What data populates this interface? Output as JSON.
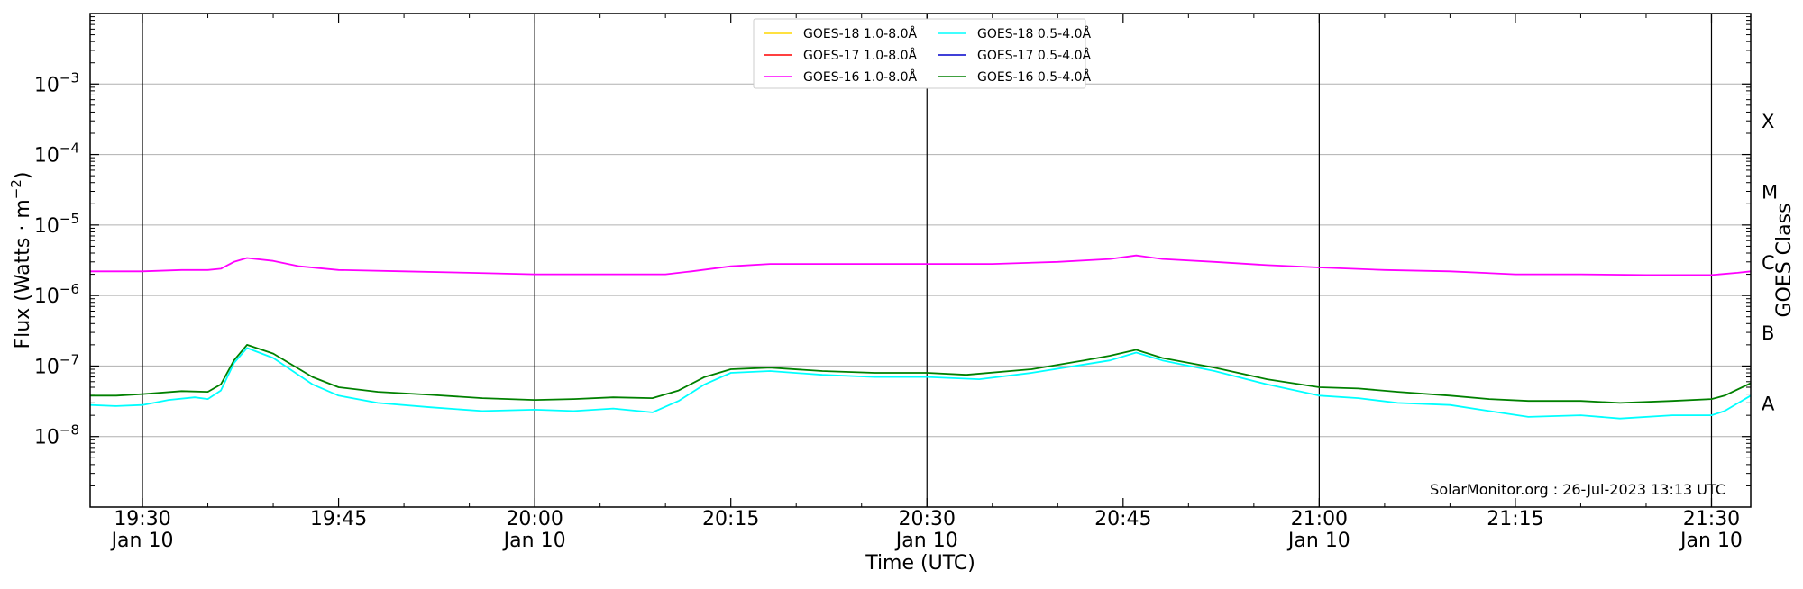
{
  "chart_data": {
    "type": "line",
    "title": "",
    "xlabel": "Time (UTC)",
    "ylabel": "Flux (Watts · m^-2)",
    "right_axis_label": "GOES Class",
    "y_scale": "log",
    "ylim": [
      1e-09,
      0.01
    ],
    "xlim": [
      "19:26",
      "21:33"
    ],
    "grid": "horizontal at decades",
    "legend_placement": "top-center",
    "y_ticks": [
      {
        "value": 1e-08,
        "base": "10",
        "exp": "−8"
      },
      {
        "value": 1e-07,
        "base": "10",
        "exp": "−7"
      },
      {
        "value": 1e-06,
        "base": "10",
        "exp": "−6"
      },
      {
        "value": 1e-05,
        "base": "10",
        "exp": "−5"
      },
      {
        "value": 0.0001,
        "base": "10",
        "exp": "−4"
      },
      {
        "value": 0.001,
        "base": "10",
        "exp": "−3"
      }
    ],
    "x_ticks": [
      {
        "time": "19:30",
        "label": "19:30",
        "date": "Jan 10",
        "vline": true
      },
      {
        "time": "19:45",
        "label": "19:45",
        "date": "",
        "vline": false
      },
      {
        "time": "20:00",
        "label": "20:00",
        "date": "Jan 10",
        "vline": true
      },
      {
        "time": "20:15",
        "label": "20:15",
        "date": "",
        "vline": false
      },
      {
        "time": "20:30",
        "label": "20:30",
        "date": "Jan 10",
        "vline": true
      },
      {
        "time": "20:45",
        "label": "20:45",
        "date": "",
        "vline": false
      },
      {
        "time": "21:00",
        "label": "21:00",
        "date": "Jan 10",
        "vline": true
      },
      {
        "time": "21:15",
        "label": "21:15",
        "date": "",
        "vline": false
      },
      {
        "time": "21:30",
        "label": "21:30",
        "date": "Jan 10",
        "vline": true
      }
    ],
    "goes_classes": [
      {
        "label": "A",
        "value": 3e-08
      },
      {
        "label": "B",
        "value": 3e-07
      },
      {
        "label": "C",
        "value": 3e-06
      },
      {
        "label": "M",
        "value": 3e-05
      },
      {
        "label": "X",
        "value": 0.0003
      }
    ],
    "legend": [
      {
        "name": "GOES-18 1.0-8.0Å",
        "color": "#ffd700"
      },
      {
        "name": "GOES-17 1.0-8.0Å",
        "color": "#ff0000"
      },
      {
        "name": "GOES-16 1.0-8.0Å",
        "color": "#ff00ff"
      },
      {
        "name": "GOES-18 0.5-4.0Å",
        "color": "#00ffff"
      },
      {
        "name": "GOES-17 0.5-4.0Å",
        "color": "#0000cc"
      },
      {
        "name": "GOES-16 0.5-4.0Å",
        "color": "#008000"
      }
    ],
    "series": [
      {
        "name": "GOES-16 1.0-8.0Å",
        "color": "#ff00ff",
        "points": [
          [
            "19:26",
            2.2e-06
          ],
          [
            "19:30",
            2.2e-06
          ],
          [
            "19:33",
            2.3e-06
          ],
          [
            "19:35",
            2.3e-06
          ],
          [
            "19:36",
            2.4e-06
          ],
          [
            "19:37",
            3e-06
          ],
          [
            "19:38",
            3.4e-06
          ],
          [
            "19:40",
            3.1e-06
          ],
          [
            "19:42",
            2.6e-06
          ],
          [
            "19:45",
            2.3e-06
          ],
          [
            "19:50",
            2.2e-06
          ],
          [
            "19:55",
            2.1e-06
          ],
          [
            "20:00",
            2e-06
          ],
          [
            "20:05",
            2e-06
          ],
          [
            "20:10",
            2e-06
          ],
          [
            "20:12",
            2.2e-06
          ],
          [
            "20:15",
            2.6e-06
          ],
          [
            "20:18",
            2.8e-06
          ],
          [
            "20:22",
            2.8e-06
          ],
          [
            "20:28",
            2.8e-06
          ],
          [
            "20:30",
            2.8e-06
          ],
          [
            "20:35",
            2.8e-06
          ],
          [
            "20:40",
            3e-06
          ],
          [
            "20:44",
            3.3e-06
          ],
          [
            "20:46",
            3.7e-06
          ],
          [
            "20:48",
            3.3e-06
          ],
          [
            "20:52",
            3e-06
          ],
          [
            "20:56",
            2.7e-06
          ],
          [
            "21:00",
            2.5e-06
          ],
          [
            "21:05",
            2.3e-06
          ],
          [
            "21:10",
            2.2e-06
          ],
          [
            "21:15",
            2e-06
          ],
          [
            "21:20",
            2e-06
          ],
          [
            "21:25",
            1.95e-06
          ],
          [
            "21:30",
            1.95e-06
          ],
          [
            "21:32",
            2.1e-06
          ],
          [
            "21:33",
            2.2e-06
          ]
        ]
      },
      {
        "name": "GOES-18 0.5-4.0Å",
        "color": "#00ffff",
        "points": [
          [
            "19:26",
            2.8e-08
          ],
          [
            "19:28",
            2.7e-08
          ],
          [
            "19:30",
            2.8e-08
          ],
          [
            "19:32",
            3.3e-08
          ],
          [
            "19:34",
            3.6e-08
          ],
          [
            "19:35",
            3.4e-08
          ],
          [
            "19:36",
            4.5e-08
          ],
          [
            "19:37",
            1.1e-07
          ],
          [
            "19:38",
            1.8e-07
          ],
          [
            "19:40",
            1.3e-07
          ],
          [
            "19:43",
            5.5e-08
          ],
          [
            "19:45",
            3.8e-08
          ],
          [
            "19:48",
            3e-08
          ],
          [
            "19:52",
            2.6e-08
          ],
          [
            "19:56",
            2.3e-08
          ],
          [
            "20:00",
            2.4e-08
          ],
          [
            "20:03",
            2.3e-08
          ],
          [
            "20:06",
            2.5e-08
          ],
          [
            "20:09",
            2.2e-08
          ],
          [
            "20:11",
            3.2e-08
          ],
          [
            "20:13",
            5.5e-08
          ],
          [
            "20:15",
            8e-08
          ],
          [
            "20:18",
            8.5e-08
          ],
          [
            "20:22",
            7.5e-08
          ],
          [
            "20:26",
            7e-08
          ],
          [
            "20:30",
            7e-08
          ],
          [
            "20:34",
            6.5e-08
          ],
          [
            "20:38",
            8e-08
          ],
          [
            "20:42",
            1.05e-07
          ],
          [
            "20:44",
            1.2e-07
          ],
          [
            "20:46",
            1.55e-07
          ],
          [
            "20:48",
            1.2e-07
          ],
          [
            "20:52",
            8.5e-08
          ],
          [
            "20:56",
            5.5e-08
          ],
          [
            "21:00",
            3.8e-08
          ],
          [
            "21:03",
            3.5e-08
          ],
          [
            "21:06",
            3e-08
          ],
          [
            "21:10",
            2.8e-08
          ],
          [
            "21:13",
            2.3e-08
          ],
          [
            "21:16",
            1.9e-08
          ],
          [
            "21:20",
            2e-08
          ],
          [
            "21:23",
            1.8e-08
          ],
          [
            "21:27",
            2e-08
          ],
          [
            "21:30",
            2e-08
          ],
          [
            "21:31",
            2.3e-08
          ],
          [
            "21:33",
            3.8e-08
          ]
        ]
      },
      {
        "name": "GOES-16 0.5-4.0Å",
        "color": "#008000",
        "points": [
          [
            "19:26",
            3.8e-08
          ],
          [
            "19:28",
            3.8e-08
          ],
          [
            "19:30",
            4e-08
          ],
          [
            "19:33",
            4.4e-08
          ],
          [
            "19:35",
            4.3e-08
          ],
          [
            "19:36",
            5.5e-08
          ],
          [
            "19:37",
            1.2e-07
          ],
          [
            "19:38",
            2e-07
          ],
          [
            "19:40",
            1.5e-07
          ],
          [
            "19:43",
            7e-08
          ],
          [
            "19:45",
            5e-08
          ],
          [
            "19:48",
            4.3e-08
          ],
          [
            "19:52",
            3.9e-08
          ],
          [
            "19:56",
            3.5e-08
          ],
          [
            "20:00",
            3.3e-08
          ],
          [
            "20:03",
            3.4e-08
          ],
          [
            "20:06",
            3.6e-08
          ],
          [
            "20:09",
            3.5e-08
          ],
          [
            "20:11",
            4.5e-08
          ],
          [
            "20:13",
            7e-08
          ],
          [
            "20:15",
            9e-08
          ],
          [
            "20:18",
            9.5e-08
          ],
          [
            "20:22",
            8.5e-08
          ],
          [
            "20:26",
            8e-08
          ],
          [
            "20:30",
            8e-08
          ],
          [
            "20:33",
            7.5e-08
          ],
          [
            "20:38",
            9e-08
          ],
          [
            "20:42",
            1.2e-07
          ],
          [
            "20:44",
            1.4e-07
          ],
          [
            "20:46",
            1.7e-07
          ],
          [
            "20:48",
            1.3e-07
          ],
          [
            "20:52",
            9.5e-08
          ],
          [
            "20:56",
            6.5e-08
          ],
          [
            "21:00",
            5e-08
          ],
          [
            "21:03",
            4.8e-08
          ],
          [
            "21:06",
            4.3e-08
          ],
          [
            "21:10",
            3.8e-08
          ],
          [
            "21:13",
            3.4e-08
          ],
          [
            "21:16",
            3.2e-08
          ],
          [
            "21:20",
            3.2e-08
          ],
          [
            "21:23",
            3e-08
          ],
          [
            "21:27",
            3.2e-08
          ],
          [
            "21:30",
            3.4e-08
          ],
          [
            "21:31",
            3.8e-08
          ],
          [
            "21:33",
            5.7e-08
          ]
        ]
      }
    ],
    "annotation": "SolarMonitor.org : 26-Jul-2023 13:13 UTC"
  }
}
